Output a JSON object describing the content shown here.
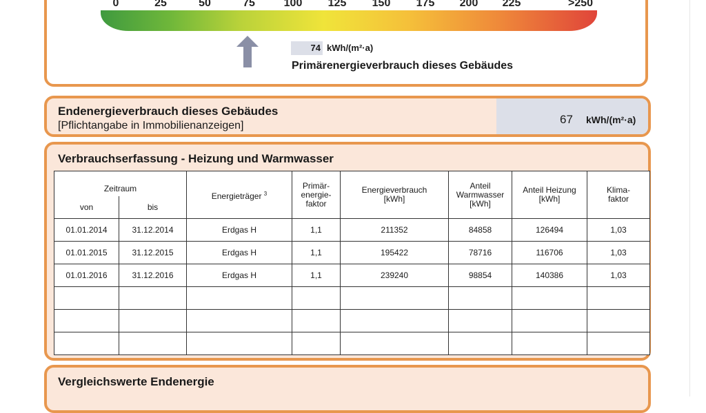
{
  "scale": {
    "ticks": [
      "0",
      "25",
      "50",
      "75",
      "100",
      "125",
      "150",
      "175",
      "200",
      "225",
      ">250"
    ],
    "marker_value": "74",
    "marker_value_fraction": 0.296,
    "unit": "kWh/(m²·a)",
    "label": "Primärenergieverbrauch dieses Gebäudes"
  },
  "end_energy": {
    "title": "Endenergieverbrauch dieses Gebäudes",
    "subtitle": "[Pflichtangabe in Immobilienanzeigen]",
    "value": "67",
    "unit": "kWh/(m²·a)"
  },
  "consumption": {
    "title": "Verbrauchserfassung - Heizung und Warmwasser",
    "headers": {
      "period": "Zeitraum",
      "from": "von",
      "to": "bis",
      "carrier": "Energieträger",
      "carrier_sup": "3",
      "pef": [
        "Primär-",
        "energie-",
        "faktor"
      ],
      "consumption": [
        "Energieverbrauch",
        "[kWh]"
      ],
      "hot_water": [
        "Anteil",
        "Warmwasser",
        "[kWh]"
      ],
      "heating": [
        "Anteil Heizung",
        "[kWh]"
      ],
      "climate": [
        "Klima-",
        "faktor"
      ]
    },
    "rows": [
      {
        "from": "01.01.2014",
        "to": "31.12.2014",
        "carrier": "Erdgas H",
        "pef": "1,1",
        "consumption": "211352",
        "hot_water": "84858",
        "heating": "126494",
        "climate": "1,03"
      },
      {
        "from": "01.01.2015",
        "to": "31.12.2015",
        "carrier": "Erdgas H",
        "pef": "1,1",
        "consumption": "195422",
        "hot_water": "78716",
        "heating": "116706",
        "climate": "1,03"
      },
      {
        "from": "01.01.2016",
        "to": "31.12.2016",
        "carrier": "Erdgas H",
        "pef": "1,1",
        "consumption": "239240",
        "hot_water": "98854",
        "heating": "140386",
        "climate": "1,03"
      },
      {
        "from": "",
        "to": "",
        "carrier": "",
        "pef": "",
        "consumption": "",
        "hot_water": "",
        "heating": "",
        "climate": ""
      },
      {
        "from": "",
        "to": "",
        "carrier": "",
        "pef": "",
        "consumption": "",
        "hot_water": "",
        "heating": "",
        "climate": ""
      },
      {
        "from": "",
        "to": "",
        "carrier": "",
        "pef": "",
        "consumption": "",
        "hot_water": "",
        "heating": "",
        "climate": ""
      }
    ]
  },
  "comparison": {
    "title": "Vergleichswerte Endenergie"
  },
  "colors": {
    "border": "#e8974e",
    "panel_bg": "#fbe7da",
    "value_bg": "#dcdfe8",
    "arrow": "#8a8fa6"
  }
}
